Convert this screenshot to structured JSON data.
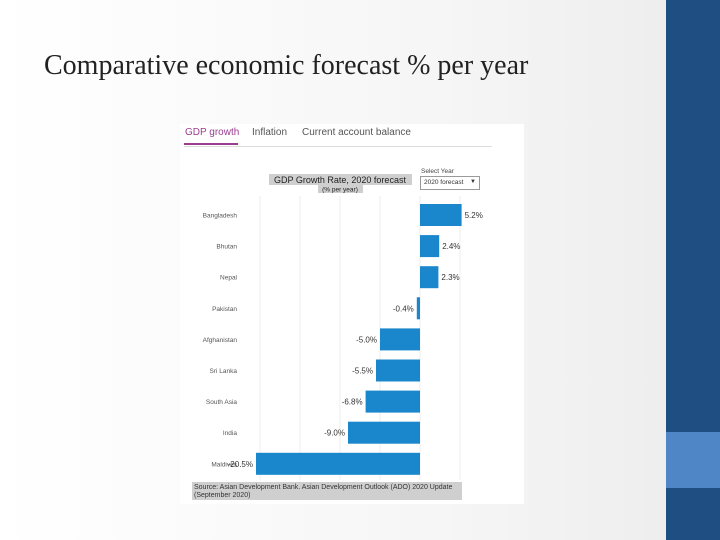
{
  "slide": {
    "title": "Comparative economic forecast % per year"
  },
  "tabs": [
    {
      "label": "GDP growth",
      "active": true
    },
    {
      "label": "Inflation",
      "active": false
    },
    {
      "label": "Current account balance",
      "active": false
    }
  ],
  "select": {
    "label": "Select Year",
    "value": "2020 forecast"
  },
  "colors": {
    "bar": "#1a87cc",
    "tab_active": "#9b3c8e",
    "title_bg": "#cfcfcf",
    "accent_dark": "#1f4e82",
    "accent_light": "#4f86c6"
  },
  "chart_data": {
    "type": "bar",
    "orientation": "horizontal",
    "title": "GDP Growth Rate, 2020 forecast",
    "subtitle": "(% per year)",
    "categories": [
      "Bangladesh",
      "Bhutan",
      "Nepal",
      "Pakistan",
      "Afghanistan",
      "Sri Lanka",
      "South Asia",
      "India",
      "Maldives"
    ],
    "values": [
      5.2,
      2.4,
      2.3,
      -0.4,
      -5.0,
      -5.5,
      -6.8,
      -9.0,
      -20.5
    ],
    "value_labels": [
      "5.2%",
      "2.4%",
      "2.3%",
      "-0.4%",
      "-5.0%",
      "-5.5%",
      "-6.8%",
      "-9.0%",
      "-20.5%"
    ],
    "xlim": [
      -22,
      8
    ],
    "grid": true,
    "source": [
      "Source: Asian Development Bank. Asian Development Outlook (ADO) 2020 Update",
      "(September 2020)"
    ]
  }
}
